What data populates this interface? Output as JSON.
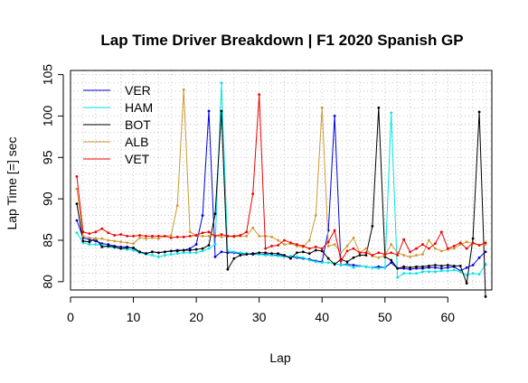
{
  "chart_data": {
    "type": "line",
    "title": "Lap Time Driver Breakdown | F1 2020 Spanish GP",
    "xlabel": "Lap",
    "ylabel": "Lap Time [=] sec",
    "xlim": [
      0,
      67
    ],
    "ylim": [
      79,
      105.5
    ],
    "xticks": [
      0,
      10,
      20,
      30,
      40,
      50,
      60
    ],
    "yticks": [
      80,
      85,
      90,
      95,
      100,
      105
    ],
    "grid": true,
    "legend_position": "top-left",
    "series": [
      {
        "name": "VER",
        "color": "#0000dd",
        "x": [
          1,
          2,
          3,
          4,
          5,
          6,
          7,
          8,
          9,
          10,
          11,
          12,
          13,
          14,
          15,
          16,
          17,
          18,
          19,
          20,
          21,
          22,
          23,
          24,
          25,
          26,
          27,
          28,
          29,
          30,
          31,
          32,
          33,
          34,
          35,
          36,
          37,
          38,
          39,
          40,
          41,
          42,
          43,
          44,
          45,
          46,
          47,
          48,
          49,
          50,
          51,
          52,
          53,
          54,
          55,
          56,
          57,
          58,
          59,
          60,
          61,
          62,
          63,
          64,
          65,
          66
        ],
        "y": [
          87.4,
          85.3,
          85.1,
          84.9,
          84.6,
          84.5,
          84.3,
          84.2,
          84.2,
          84.0,
          83.6,
          83.4,
          83.6,
          83.5,
          83.6,
          83.7,
          83.8,
          83.8,
          84.0,
          84.5,
          88.0,
          100.6,
          83.0,
          83.6,
          83.5,
          83.5,
          83.4,
          83.4,
          83.3,
          83.3,
          83.3,
          83.2,
          83.2,
          83.1,
          83.0,
          82.9,
          82.8,
          82.7,
          82.5,
          82.4,
          86.2,
          100.0,
          82.0,
          82.1,
          82.0,
          81.9,
          81.8,
          81.7,
          81.8,
          81.7,
          82.3,
          81.6,
          81.6,
          81.5,
          81.6,
          81.6,
          81.7,
          81.7,
          81.6,
          81.7,
          81.8,
          81.3,
          81.7,
          82.0,
          82.9,
          83.6
        ]
      },
      {
        "name": "HAM",
        "color": "#00e5e5",
        "x": [
          1,
          2,
          3,
          4,
          5,
          6,
          7,
          8,
          9,
          10,
          11,
          12,
          13,
          14,
          15,
          16,
          17,
          18,
          19,
          20,
          21,
          22,
          23,
          24,
          25,
          26,
          27,
          28,
          29,
          30,
          31,
          32,
          33,
          34,
          35,
          36,
          37,
          38,
          39,
          40,
          41,
          42,
          43,
          44,
          45,
          46,
          47,
          48,
          49,
          50,
          51,
          52,
          53,
          54,
          55,
          56,
          57,
          58,
          59,
          60,
          61,
          62,
          63,
          64,
          65,
          66
        ],
        "y": [
          85.9,
          84.7,
          84.5,
          84.5,
          84.4,
          84.2,
          84.1,
          84.0,
          83.9,
          83.8,
          83.5,
          83.3,
          83.2,
          83.0,
          83.2,
          83.3,
          83.4,
          83.5,
          83.5,
          83.5,
          83.7,
          84.0,
          84.5,
          104.0,
          83.7,
          83.6,
          83.5,
          83.4,
          83.4,
          83.3,
          83.2,
          83.2,
          83.1,
          83.0,
          83.1,
          83.0,
          82.9,
          82.6,
          82.4,
          82.3,
          82.3,
          82.2,
          82.0,
          82.0,
          81.7,
          81.9,
          81.8,
          81.7,
          81.6,
          81.7,
          100.4,
          80.5,
          81.0,
          81.0,
          81.0,
          81.2,
          81.2,
          81.2,
          81.3,
          81.3,
          81.4,
          81.2,
          80.8,
          81.0,
          80.9,
          82.1
        ]
      },
      {
        "name": "BOT",
        "color": "#000000",
        "x": [
          1,
          2,
          3,
          4,
          5,
          6,
          7,
          8,
          9,
          10,
          11,
          12,
          13,
          14,
          15,
          16,
          17,
          18,
          19,
          20,
          21,
          22,
          23,
          24,
          25,
          26,
          27,
          28,
          29,
          30,
          31,
          32,
          33,
          34,
          35,
          36,
          37,
          38,
          39,
          40,
          41,
          42,
          43,
          44,
          45,
          46,
          47,
          48,
          49,
          50,
          51,
          52,
          53,
          54,
          55,
          56,
          57,
          58,
          59,
          60,
          61,
          62,
          63,
          64,
          65,
          66
        ],
        "y": [
          89.4,
          84.9,
          84.8,
          85.2,
          84.2,
          84.3,
          84.2,
          84.0,
          84.1,
          84.1,
          83.6,
          83.4,
          83.6,
          83.5,
          83.6,
          83.7,
          83.7,
          83.8,
          83.8,
          83.9,
          84.0,
          84.4,
          88.2,
          100.6,
          81.5,
          82.8,
          83.2,
          83.3,
          83.4,
          83.5,
          83.5,
          83.4,
          83.4,
          83.2,
          82.8,
          83.5,
          83.6,
          83.4,
          83.8,
          83.7,
          82.8,
          82.1,
          82.7,
          82.4,
          82.9,
          83.2,
          83.2,
          86.7,
          101.0,
          83.0,
          82.6,
          81.6,
          81.8,
          81.7,
          81.8,
          81.8,
          81.9,
          82.0,
          81.9,
          82.0,
          81.9,
          81.9,
          79.8,
          85.2,
          100.5,
          78.2
        ]
      },
      {
        "name": "ALB",
        "color": "#cc9933",
        "x": [
          1,
          2,
          3,
          4,
          5,
          6,
          7,
          8,
          9,
          10,
          11,
          12,
          13,
          14,
          15,
          16,
          17,
          18,
          19,
          20,
          21,
          22,
          23,
          24,
          25,
          26,
          27,
          28,
          29,
          30,
          31,
          32,
          33,
          34,
          35,
          36,
          37,
          38,
          39,
          40,
          41,
          42,
          43,
          44,
          45,
          46,
          47,
          48,
          49,
          50,
          51,
          52,
          53,
          54,
          55,
          56,
          57,
          58,
          59,
          60,
          61,
          62,
          63,
          64,
          65,
          66
        ],
        "y": [
          91.2,
          85.5,
          85.3,
          85.2,
          85.2,
          85.0,
          84.9,
          84.8,
          84.7,
          84.6,
          85.3,
          85.2,
          85.3,
          85.2,
          85.5,
          85.6,
          89.2,
          103.2,
          86.0,
          85.6,
          85.5,
          85.5,
          85.6,
          85.4,
          85.5,
          85.4,
          85.5,
          85.5,
          86.5,
          85.5,
          85.5,
          85.4,
          85.0,
          84.5,
          84.6,
          84.3,
          84.2,
          85.0,
          88.0,
          101.0,
          84.3,
          84.5,
          83.5,
          84.3,
          85.3,
          83.5,
          84.0,
          83.1,
          82.9,
          83.2,
          84.5,
          83.5,
          83.2,
          83.0,
          83.2,
          83.3,
          85.0,
          84.0,
          83.7,
          83.9,
          84.0,
          84.5,
          84.8,
          84.6,
          84.4,
          84.5
        ]
      },
      {
        "name": "VET",
        "color": "#ee0000",
        "x": [
          1,
          2,
          3,
          4,
          5,
          6,
          7,
          8,
          9,
          10,
          11,
          12,
          13,
          14,
          15,
          16,
          17,
          18,
          19,
          20,
          21,
          22,
          23,
          24,
          25,
          26,
          27,
          28,
          29,
          30,
          31,
          32,
          33,
          34,
          35,
          36,
          37,
          38,
          39,
          40,
          41,
          42,
          43,
          44,
          45,
          46,
          47,
          48,
          49,
          50,
          51,
          52,
          53,
          54,
          55,
          56,
          57,
          58,
          59,
          60,
          61,
          62,
          63,
          64,
          65,
          66
        ],
        "y": [
          92.7,
          86.0,
          85.8,
          86.0,
          86.4,
          85.9,
          85.6,
          85.7,
          85.5,
          85.5,
          85.6,
          85.5,
          85.5,
          85.5,
          85.5,
          85.3,
          85.4,
          85.4,
          85.5,
          85.6,
          85.9,
          86.0,
          85.5,
          85.7,
          85.5,
          85.5,
          85.6,
          86.0,
          90.6,
          102.6,
          84.0,
          84.3,
          84.4,
          85.0,
          84.7,
          84.5,
          84.3,
          84.0,
          84.2,
          84.0,
          84.8,
          86.2,
          82.5,
          83.7,
          84.0,
          83.5,
          83.5,
          83.2,
          83.5,
          83.3,
          83.5,
          83.2,
          85.1,
          83.6,
          84.0,
          84.5,
          84.0,
          84.6,
          86.0,
          84.0,
          84.3,
          84.7,
          84.0,
          84.7,
          84.4,
          84.7
        ]
      }
    ]
  }
}
